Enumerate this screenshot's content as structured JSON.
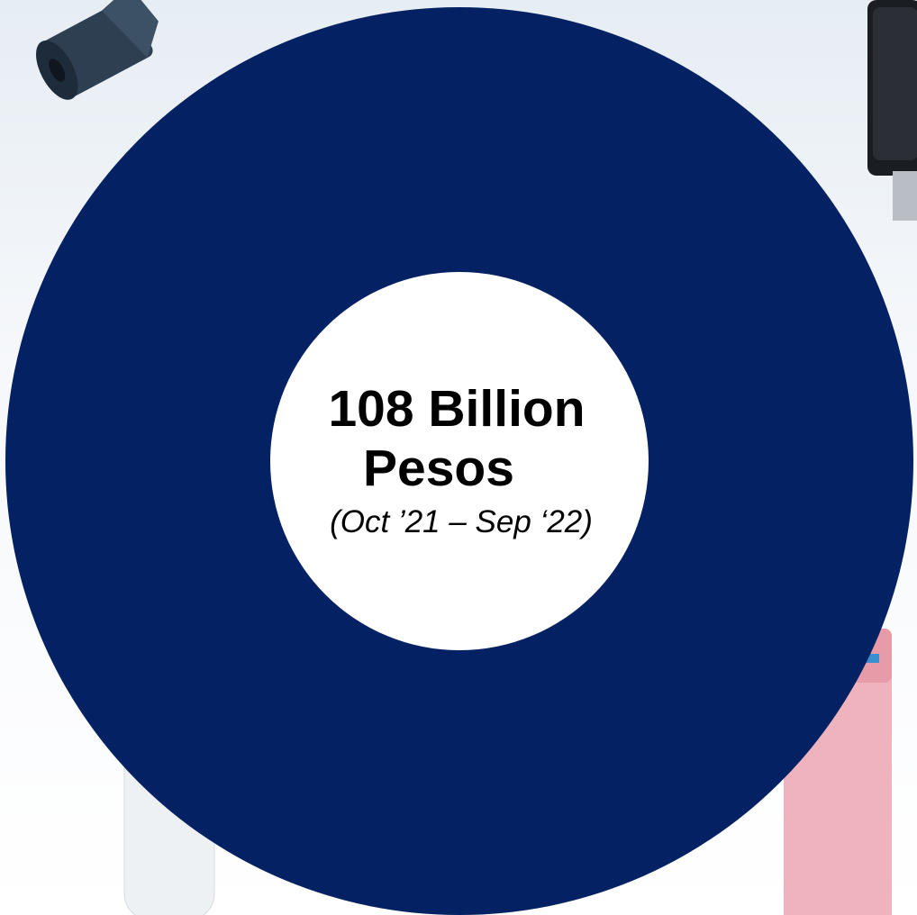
{
  "chart_data": {
    "type": "pie",
    "style": "donut",
    "title": "",
    "center_text": {
      "line1": "108 Billion",
      "line2": "Pesos",
      "period": "(Oct ’21 – Sep ‘22)"
    },
    "series": [
      {
        "values": [
          108
        ],
        "color": "#042263"
      }
    ],
    "colors": {
      "ring": "#042263",
      "hole": "#ffffff"
    }
  },
  "decorations": [
    {
      "id": "trash-bag-roll",
      "icon": "trash-bag-roll-image"
    },
    {
      "id": "towel-dispenser",
      "icon": "towel-dispenser-image"
    },
    {
      "id": "spray-bottle",
      "icon": "spray-bottle-image"
    },
    {
      "id": "cleaning-wipes-pack",
      "icon": "wipes-pack-image"
    }
  ]
}
